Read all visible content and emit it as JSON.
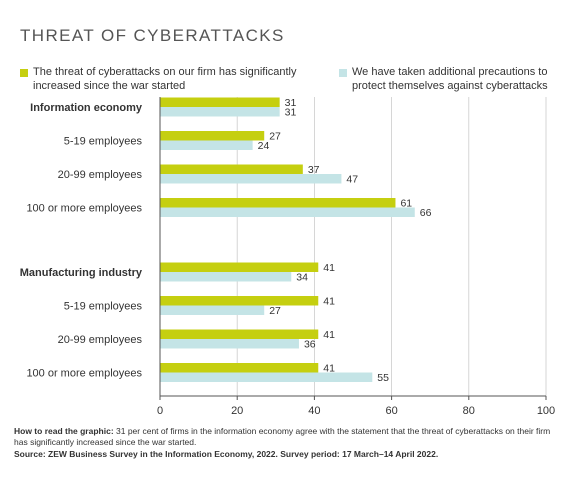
{
  "chart_data": {
    "type": "bar",
    "orientation": "horizontal",
    "title": "THREAT OF CYBERATTACKS",
    "groups": [
      {
        "header": "Information economy",
        "rows": [
          {
            "label": "Information economy",
            "bold": true,
            "values": [
              31,
              31
            ]
          },
          {
            "label": "5-19 employees",
            "bold": false,
            "values": [
              27,
              24
            ]
          },
          {
            "label": "20-99 employees",
            "bold": false,
            "values": [
              37,
              47
            ]
          },
          {
            "label": "100 or more employees",
            "bold": false,
            "values": [
              61,
              66
            ]
          }
        ]
      },
      {
        "header": "Manufacturing industry",
        "rows": [
          {
            "label": "Manufacturing industry",
            "bold": true,
            "values": [
              41,
              34
            ]
          },
          {
            "label": "5-19 employees",
            "bold": false,
            "values": [
              41,
              27
            ]
          },
          {
            "label": "20-99 employees",
            "bold": false,
            "values": [
              41,
              36
            ]
          },
          {
            "label": "100 or more employees",
            "bold": false,
            "values": [
              41,
              55
            ]
          }
        ]
      }
    ],
    "series": [
      {
        "name": "The threat of cyberattacks on our firm has significantly increased since the war started",
        "color": "#c5cf10"
      },
      {
        "name": "We have taken additional precautions to protect themselves against cyberattacks",
        "color": "#c4e4e6"
      }
    ],
    "xlim": [
      0,
      100
    ],
    "xticks": [
      0,
      20,
      40,
      60,
      80,
      100
    ],
    "grid": true,
    "legend_position": "top"
  },
  "legend": {
    "item1_line1": "The threat of cyberattacks on our firm has significantly",
    "item1_line2": "increased since the war started",
    "item2_line1": "We have taken additional precautions to",
    "item2_line2": "protect themselves against cyberattacks"
  },
  "notes": {
    "howto_label": "How to read the graphic:",
    "howto_text": " 31 per cent of firms in the information economy agree with the statement that the threat of cyberattacks on their firm has significantly increased since the war started.",
    "source_text": "Source: ZEW Business Survey in the Information Economy, 2022. Survey period: 17 March–14 April 2022."
  },
  "colors": {
    "series1": "#c5cf10",
    "series2": "#c4e4e6",
    "grid": "#cccccc",
    "axis": "#555555",
    "text": "#333333"
  }
}
